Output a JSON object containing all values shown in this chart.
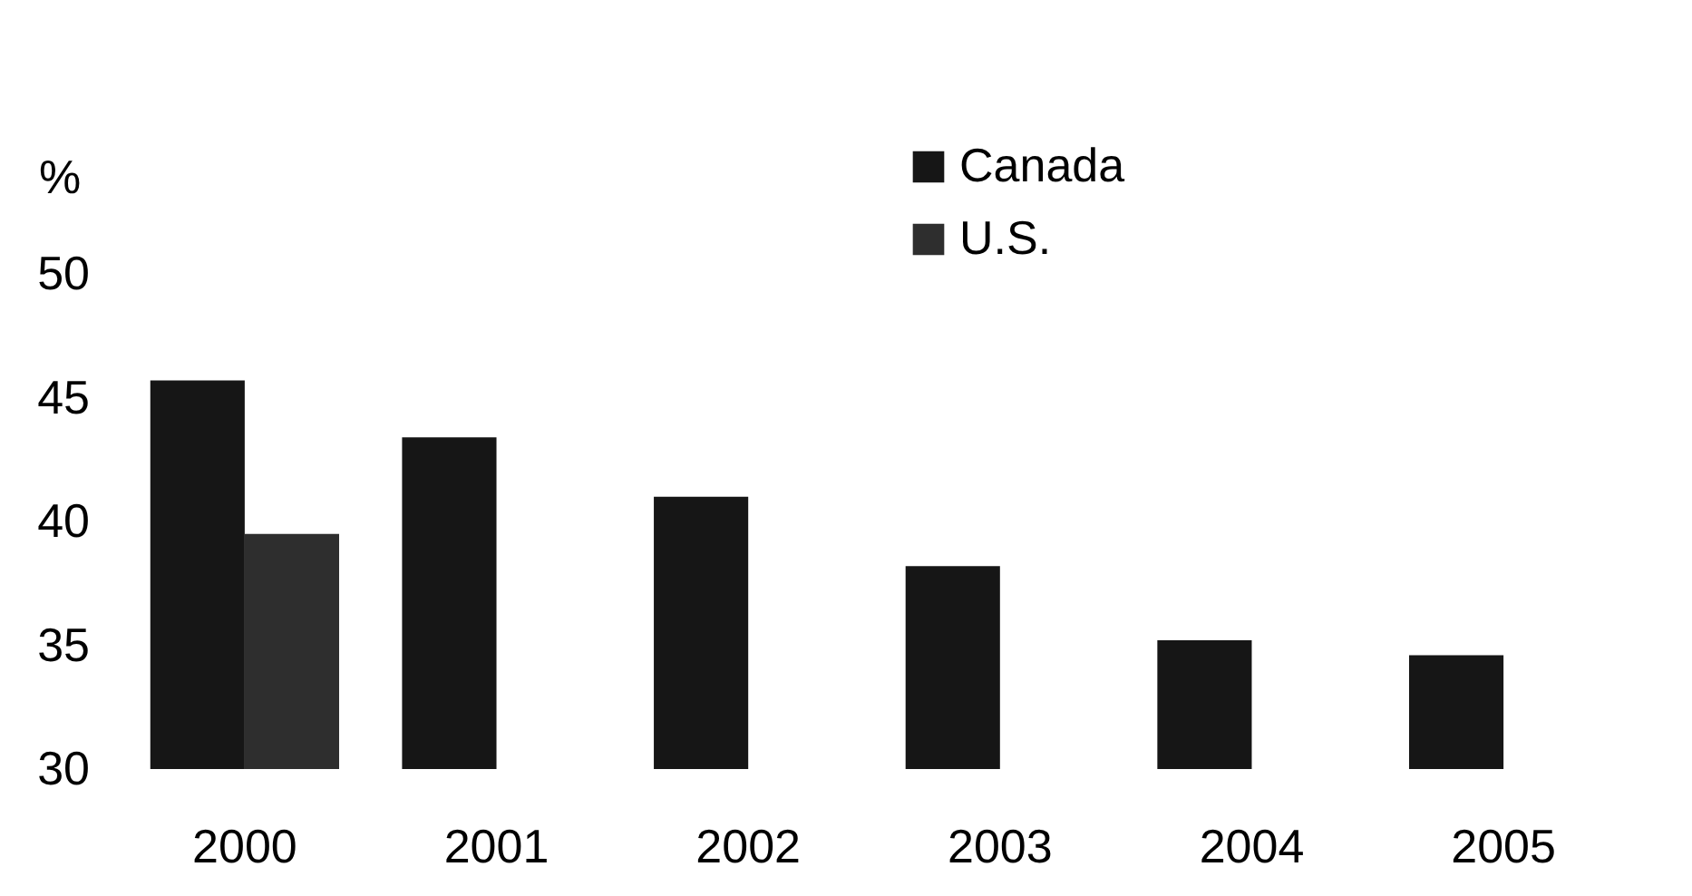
{
  "chart_data": {
    "type": "bar",
    "ylabel": "%",
    "categories": [
      "2000",
      "2001",
      "2002",
      "2003",
      "2004",
      "2005"
    ],
    "series": [
      {
        "name": "Canada",
        "color": "#161616",
        "values": [
          45.7,
          43.4,
          41.0,
          38.2,
          35.2,
          34.6
        ]
      },
      {
        "name": "U.S.",
        "color": "#2e2e2e",
        "values": [
          39.5,
          null,
          null,
          null,
          null,
          null
        ]
      }
    ],
    "ylim": [
      30,
      50
    ],
    "yticks": [
      30,
      35,
      40,
      45,
      50
    ],
    "grid": false,
    "legend": "top"
  }
}
